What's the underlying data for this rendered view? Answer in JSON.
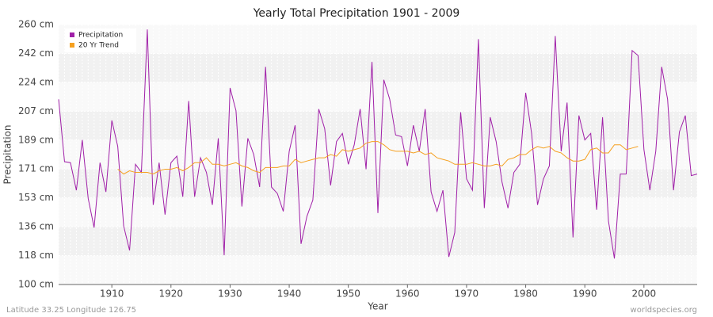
{
  "chart_data": {
    "type": "line",
    "title": "Yearly Total Precipitation 1901 - 2009",
    "x_label": "Year",
    "y_label": "Precipitation",
    "footer_left": "Latitude 33.25 Longitude 126.75",
    "footer_right": "worldspecies.org",
    "x": [
      1901,
      1902,
      1903,
      1904,
      1905,
      1906,
      1907,
      1908,
      1909,
      1910,
      1911,
      1912,
      1913,
      1914,
      1915,
      1916,
      1917,
      1918,
      1919,
      1920,
      1921,
      1922,
      1923,
      1924,
      1925,
      1926,
      1927,
      1928,
      1929,
      1930,
      1931,
      1932,
      1933,
      1934,
      1935,
      1936,
      1937,
      1938,
      1939,
      1940,
      1941,
      1942,
      1943,
      1944,
      1945,
      1946,
      1947,
      1948,
      1949,
      1950,
      1951,
      1952,
      1953,
      1954,
      1955,
      1956,
      1957,
      1958,
      1959,
      1960,
      1961,
      1962,
      1963,
      1964,
      1965,
      1966,
      1967,
      1968,
      1969,
      1970,
      1971,
      1972,
      1973,
      1974,
      1975,
      1976,
      1977,
      1978,
      1979,
      1980,
      1981,
      1982,
      1983,
      1984,
      1985,
      1986,
      1987,
      1988,
      1989,
      1990,
      1991,
      1992,
      1993,
      1994,
      1995,
      1996,
      1997,
      1998,
      1999,
      2000,
      2001,
      2002,
      2003,
      2004,
      2005,
      2006,
      2007,
      2008,
      2009
    ],
    "series": [
      {
        "name": "Precipitation",
        "color": "#a020a8",
        "values": [
          214,
          175.6,
          175,
          158,
          189,
          153,
          135,
          175,
          157,
          201,
          185,
          136,
          121,
          174,
          169,
          257,
          149,
          175,
          143,
          175,
          179,
          154,
          213,
          154,
          178,
          169,
          149,
          190,
          118,
          221,
          207,
          148,
          190,
          180,
          160,
          234,
          160,
          156,
          145,
          182,
          198,
          125,
          142,
          152,
          208,
          196,
          161,
          188,
          193,
          174,
          186,
          208,
          171,
          237,
          144,
          226,
          214,
          192,
          191,
          173,
          198,
          182,
          208,
          157,
          145,
          158,
          117,
          132,
          206,
          165,
          158,
          251,
          147,
          203,
          188,
          163,
          147,
          169,
          174,
          218,
          193,
          149,
          165,
          173,
          253,
          182,
          212,
          129,
          204,
          189,
          193,
          146,
          203,
          139,
          116,
          168,
          168,
          244,
          241,
          183,
          158,
          182,
          234,
          214,
          158,
          194,
          204,
          167,
          168
        ]
      },
      {
        "name": "20 Yr Trend",
        "color": "#f5a020",
        "values": [
          null,
          null,
          null,
          null,
          null,
          null,
          null,
          null,
          null,
          null,
          171,
          168,
          170,
          169,
          169,
          169,
          168,
          170,
          171,
          171,
          172,
          170,
          172,
          175,
          175,
          178,
          174,
          174,
          173,
          174,
          175,
          173,
          172,
          170,
          169,
          172,
          172,
          172,
          173,
          173,
          177,
          175,
          176,
          177,
          178,
          178,
          180,
          179,
          183,
          182,
          183,
          184,
          187,
          188,
          188,
          186,
          183,
          182,
          182,
          182,
          181,
          182,
          180,
          181,
          178,
          177,
          176,
          174,
          174,
          174,
          175,
          174,
          173,
          173,
          174,
          173,
          177,
          178,
          180,
          180,
          183,
          185,
          184,
          185,
          182,
          181,
          178,
          176,
          176,
          177,
          183,
          184,
          181,
          181,
          186,
          186,
          183,
          184,
          185,
          null,
          null,
          null,
          null,
          null,
          null,
          null,
          null,
          null,
          null
        ]
      }
    ],
    "xlim": [
      1901,
      2009
    ],
    "xticks": [
      1910,
      1920,
      1930,
      1940,
      1950,
      1960,
      1970,
      1980,
      1990,
      2000
    ],
    "ylim": [
      100,
      260
    ],
    "yticks": [
      {
        "value": 100,
        "label": "100 cm"
      },
      {
        "value": 117.78,
        "label": "118 cm"
      },
      {
        "value": 135.56,
        "label": "136 cm"
      },
      {
        "value": 153.33,
        "label": "153 cm"
      },
      {
        "value": 171.11,
        "label": "171 cm"
      },
      {
        "value": 188.89,
        "label": "189 cm"
      },
      {
        "value": 206.67,
        "label": "207 cm"
      },
      {
        "value": 224.44,
        "label": "224 cm"
      },
      {
        "value": 242.22,
        "label": "242 cm"
      },
      {
        "value": 260,
        "label": "260 cm"
      }
    ],
    "grid": true,
    "legend": "top-left"
  }
}
